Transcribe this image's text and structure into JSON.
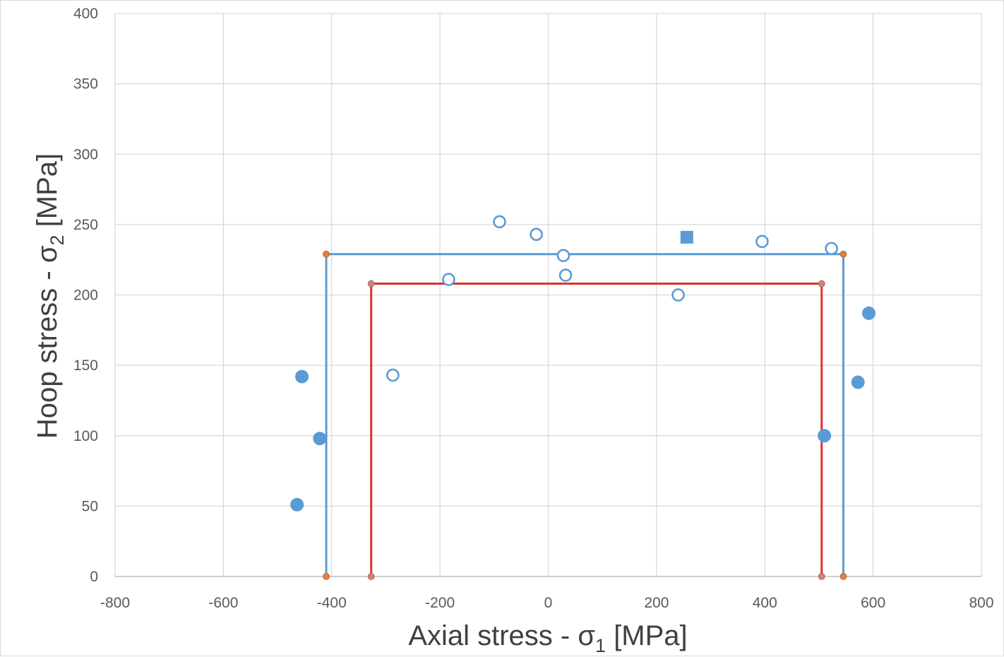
{
  "chart_data": {
    "type": "scatter",
    "xlabel": "Axial stress - σ",
    "xlabel_sub": "1",
    "xlabel_unit": " [MPa]",
    "ylabel": "Hoop  stress - σ",
    "ylabel_sub": "2",
    "ylabel_unit": " [MPa]",
    "xlim": [
      -800,
      800
    ],
    "ylim": [
      0,
      400
    ],
    "x_ticks": [
      -800,
      -600,
      -400,
      -200,
      0,
      200,
      400,
      600,
      800
    ],
    "y_ticks": [
      0,
      50,
      100,
      150,
      200,
      250,
      300,
      350,
      400
    ],
    "grid": true,
    "legend": "none",
    "series": [
      {
        "type": "line",
        "color": "#5b9bd5",
        "marker_color": "#ed7d31",
        "points": [
          [
            -410,
            0
          ],
          [
            -410,
            229
          ],
          [
            545,
            229
          ],
          [
            545,
            0
          ]
        ]
      },
      {
        "type": "line",
        "color": "#e03030",
        "marker_color": "#e07b7b",
        "points": [
          [
            -327,
            0
          ],
          [
            -327,
            208
          ],
          [
            505,
            208
          ],
          [
            505,
            0
          ]
        ]
      },
      {
        "type": "scatter",
        "marker": "circle-filled",
        "color": "#5b9bd5",
        "points": [
          [
            -455,
            142
          ],
          [
            -422,
            98
          ],
          [
            -464,
            51
          ],
          [
            510,
            100
          ],
          [
            572,
            138
          ],
          [
            592,
            187
          ]
        ]
      },
      {
        "type": "scatter",
        "marker": "circle-open",
        "color": "#5b9bd5",
        "points": [
          [
            -90,
            252
          ],
          [
            -22,
            243
          ],
          [
            28,
            228
          ],
          [
            32,
            214
          ],
          [
            -184,
            211
          ],
          [
            -287,
            143
          ],
          [
            240,
            200
          ],
          [
            395,
            238
          ],
          [
            523,
            233
          ]
        ]
      },
      {
        "type": "scatter",
        "marker": "square-filled",
        "color": "#5b9bd5",
        "points": [
          [
            256,
            241
          ]
        ]
      }
    ]
  }
}
